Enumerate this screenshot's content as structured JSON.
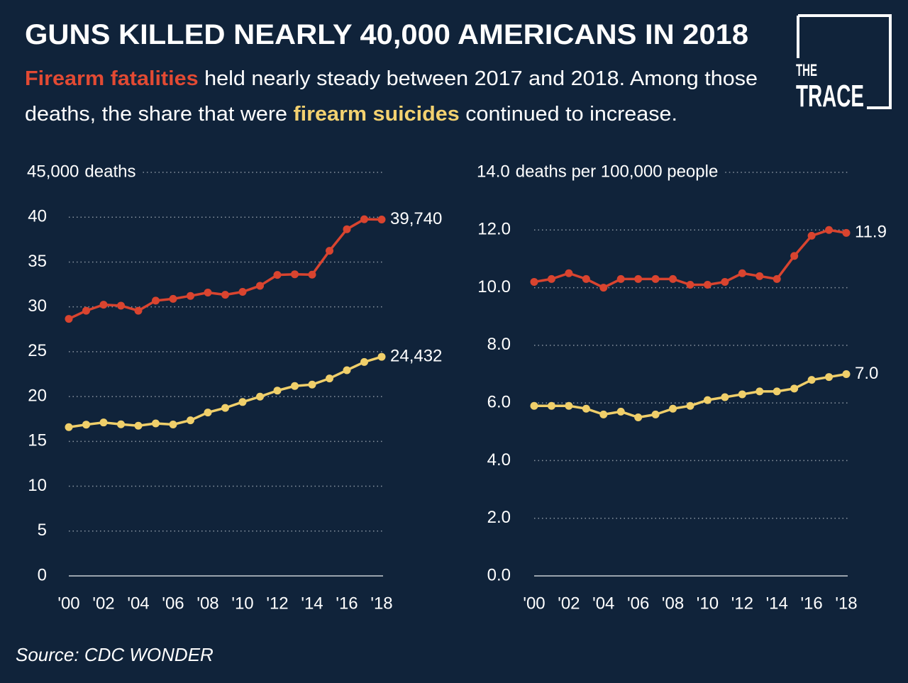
{
  "title": "GUNS KILLED NEARLY 40,000 AMERICANS IN 2018",
  "subtitle": [
    [
      {
        "text": "Firearm fatalities",
        "color": "#e24a33"
      },
      {
        "text": " held nearly steady between 2017 and 2018. Among those"
      }
    ],
    [
      {
        "text": "deaths, the share that were "
      },
      {
        "text": "firearm suicides",
        "color": "#f3d170"
      },
      {
        "text": " continued to increase."
      }
    ]
  ],
  "logo": [
    "THE",
    "TRACE"
  ],
  "source": "Source: CDC WONDER",
  "chart_data": [
    {
      "type": "line",
      "y_label": "deaths",
      "x": [
        2000,
        2001,
        2002,
        2003,
        2004,
        2005,
        2006,
        2007,
        2008,
        2009,
        2010,
        2011,
        2012,
        2013,
        2014,
        2015,
        2016,
        2017,
        2018
      ],
      "xlim": [
        2000,
        2018
      ],
      "xticks": [
        {
          "value": 2000,
          "label": "'00"
        },
        {
          "value": 2002,
          "label": "'02"
        },
        {
          "value": 2004,
          "label": "'04"
        },
        {
          "value": 2006,
          "label": "'06"
        },
        {
          "value": 2008,
          "label": "'08"
        },
        {
          "value": 2010,
          "label": "'10"
        },
        {
          "value": 2012,
          "label": "'12"
        },
        {
          "value": 2014,
          "label": "'14"
        },
        {
          "value": 2016,
          "label": "'16"
        },
        {
          "value": 2018,
          "label": "'18"
        }
      ],
      "ylim": [
        0,
        45000
      ],
      "yticks": [
        0,
        {
          "value": 5000,
          "label": "5"
        },
        {
          "value": 10000,
          "label": "10"
        },
        {
          "value": 15000,
          "label": "15"
        },
        {
          "value": 20000,
          "label": "20"
        },
        {
          "value": 25000,
          "label": "25"
        },
        {
          "value": 30000,
          "label": "30"
        },
        {
          "value": 35000,
          "label": "35"
        },
        {
          "value": 40000,
          "label": "40"
        },
        {
          "value": 45000,
          "label": "45,000"
        }
      ],
      "grid": true,
      "series": [
        {
          "color": "#d9442f",
          "values": [
            28663,
            29573,
            30242,
            30136,
            29569,
            30694,
            30896,
            31224,
            31593,
            31347,
            31672,
            32351,
            33563,
            33636,
            33594,
            36252,
            38658,
            39773,
            39740
          ],
          "value_labels": [
            null,
            null,
            null,
            null,
            null,
            null,
            null,
            null,
            null,
            null,
            null,
            null,
            null,
            null,
            null,
            null,
            null,
            null,
            "39,740"
          ]
        },
        {
          "color": "#f0cf6a",
          "values": [
            16586,
            16869,
            17108,
            16907,
            16750,
            17002,
            16883,
            17352,
            18223,
            18735,
            19392,
            19990,
            20666,
            21175,
            21334,
            22018,
            22938,
            23854,
            24432
          ],
          "value_labels": [
            null,
            null,
            null,
            null,
            null,
            null,
            null,
            null,
            null,
            null,
            null,
            null,
            null,
            null,
            null,
            null,
            null,
            null,
            "24,432"
          ]
        }
      ]
    },
    {
      "type": "line",
      "y_label": "deaths per 100,000 people",
      "x": [
        2000,
        2001,
        2002,
        2003,
        2004,
        2005,
        2006,
        2007,
        2008,
        2009,
        2010,
        2011,
        2012,
        2013,
        2014,
        2015,
        2016,
        2017,
        2018
      ],
      "xlim": [
        2000,
        2018
      ],
      "xticks": [
        {
          "value": 2000,
          "label": "'00"
        },
        {
          "value": 2002,
          "label": "'02"
        },
        {
          "value": 2004,
          "label": "'04"
        },
        {
          "value": 2006,
          "label": "'06"
        },
        {
          "value": 2008,
          "label": "'08"
        },
        {
          "value": 2010,
          "label": "'10"
        },
        {
          "value": 2012,
          "label": "'12"
        },
        {
          "value": 2014,
          "label": "'14"
        },
        {
          "value": 2016,
          "label": "'16"
        },
        {
          "value": 2018,
          "label": "'18"
        }
      ],
      "ylim": [
        0,
        14
      ],
      "yticks": [
        {
          "value": 0,
          "label": "0.0"
        },
        {
          "value": 2,
          "label": "2.0"
        },
        {
          "value": 4,
          "label": "4.0"
        },
        {
          "value": 6,
          "label": "6.0"
        },
        {
          "value": 8,
          "label": "8.0"
        },
        {
          "value": 10,
          "label": "10.0"
        },
        {
          "value": 12,
          "label": "12.0"
        },
        {
          "value": 14,
          "label": "14.0"
        }
      ],
      "grid": true,
      "series": [
        {
          "color": "#d9442f",
          "values": [
            10.2,
            10.3,
            10.5,
            10.3,
            10.0,
            10.3,
            10.3,
            10.3,
            10.3,
            10.1,
            10.1,
            10.2,
            10.5,
            10.4,
            10.3,
            11.1,
            11.8,
            12.0,
            11.9
          ],
          "value_labels": [
            null,
            null,
            null,
            null,
            null,
            null,
            null,
            null,
            null,
            null,
            null,
            null,
            null,
            null,
            null,
            null,
            null,
            null,
            "11.9"
          ]
        },
        {
          "color": "#f0cf6a",
          "values": [
            5.9,
            5.9,
            5.9,
            5.8,
            5.6,
            5.7,
            5.5,
            5.6,
            5.8,
            5.9,
            6.1,
            6.2,
            6.3,
            6.4,
            6.4,
            6.5,
            6.8,
            6.9,
            7.0
          ],
          "value_labels": [
            null,
            null,
            null,
            null,
            null,
            null,
            null,
            null,
            null,
            null,
            null,
            null,
            null,
            null,
            null,
            null,
            null,
            null,
            "7.0"
          ]
        }
      ]
    }
  ]
}
